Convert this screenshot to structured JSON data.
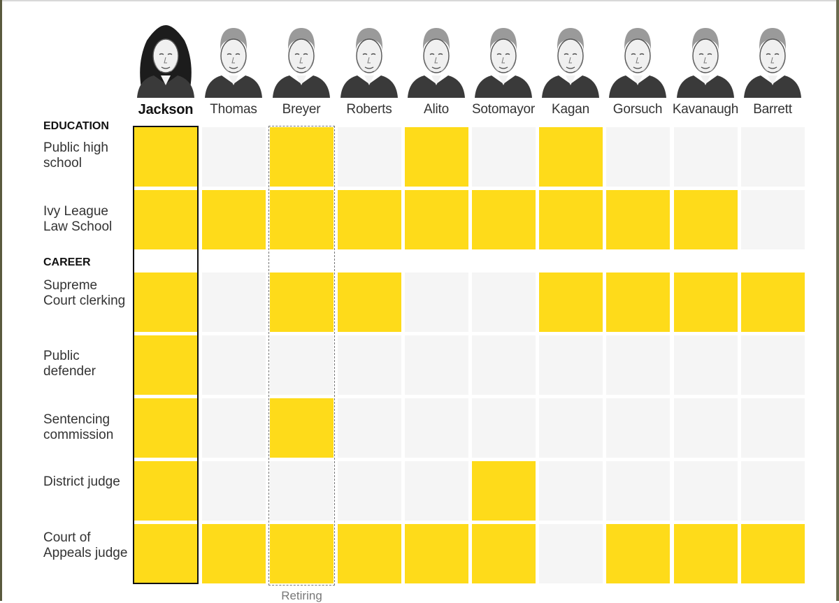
{
  "chart_data": {
    "type": "table",
    "columns": [
      "Jackson",
      "Thomas",
      "Breyer",
      "Roberts",
      "Alito",
      "Sotomayor",
      "Kagan",
      "Gorsuch",
      "Kavanaugh",
      "Barrett"
    ],
    "highlighted_column": "Jackson",
    "annotated_column": "Breyer",
    "annotation": "Retiring",
    "sections": [
      {
        "title": "EDUCATION",
        "rows": [
          {
            "label": "Public high school",
            "values": [
              1,
              0,
              1,
              0,
              1,
              0,
              1,
              0,
              0,
              0
            ]
          },
          {
            "label": "Ivy League Law School",
            "values": [
              1,
              1,
              1,
              1,
              1,
              1,
              1,
              1,
              1,
              0
            ]
          }
        ]
      },
      {
        "title": "CAREER",
        "rows": [
          {
            "label": "Supreme Court clerking",
            "values": [
              1,
              0,
              1,
              1,
              0,
              0,
              1,
              1,
              1,
              1
            ]
          },
          {
            "label": "Public defender",
            "values": [
              1,
              0,
              0,
              0,
              0,
              0,
              0,
              0,
              0,
              0
            ]
          },
          {
            "label": "Sentencing commission",
            "values": [
              1,
              0,
              1,
              0,
              0,
              0,
              0,
              0,
              0,
              0
            ]
          },
          {
            "label": "District judge",
            "values": [
              1,
              0,
              0,
              0,
              0,
              1,
              0,
              0,
              0,
              0
            ]
          },
          {
            "label": "Court of Appeals judge",
            "values": [
              1,
              1,
              1,
              1,
              1,
              1,
              0,
              1,
              1,
              1
            ]
          }
        ]
      }
    ],
    "colors": {
      "yes": "#fedb1a",
      "no": "#f5f5f5",
      "highlight_border": "#111111",
      "annotation_border": "#777777"
    }
  }
}
